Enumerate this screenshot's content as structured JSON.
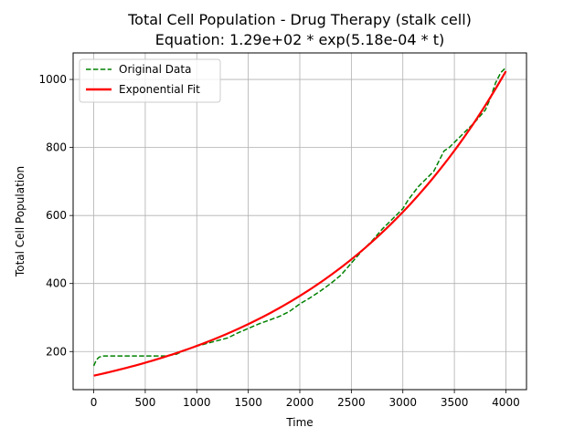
{
  "chart_data": {
    "type": "line",
    "title": "Total Cell Population - Drug Therapy (stalk cell)",
    "subtitle": "Equation: 1.29e+02 * exp(5.18e-04 * t)",
    "xlabel": "Time",
    "ylabel": "Total Cell Population",
    "xlim": [
      -200,
      4200
    ],
    "ylim": [
      88,
      1078
    ],
    "xticks": [
      0,
      500,
      1000,
      1500,
      2000,
      2500,
      3000,
      3500,
      4000
    ],
    "yticks": [
      200,
      400,
      600,
      800,
      1000
    ],
    "grid": true,
    "legend_position": "top-left",
    "series": [
      {
        "name": "Original Data",
        "color": "#008000",
        "style": "dashed",
        "x": [
          0,
          25,
          50,
          75,
          100,
          200,
          300,
          400,
          500,
          600,
          700,
          800,
          900,
          1000,
          1100,
          1200,
          1300,
          1400,
          1500,
          1600,
          1700,
          1800,
          1900,
          2000,
          2100,
          2200,
          2300,
          2400,
          2500,
          2600,
          2700,
          2800,
          2900,
          3000,
          3050,
          3100,
          3150,
          3200,
          3300,
          3400,
          3450,
          3500,
          3600,
          3700,
          3800,
          3850,
          3900,
          3950,
          4000
        ],
        "y": [
          158,
          175,
          183,
          186,
          187,
          187,
          187,
          187,
          187,
          187,
          187,
          192,
          206,
          216,
          224,
          232,
          240,
          255,
          268,
          281,
          292,
          303,
          318,
          340,
          358,
          378,
          400,
          425,
          460,
          495,
          525,
          560,
          590,
          620,
          645,
          665,
          685,
          700,
          730,
          790,
          800,
          815,
          845,
          875,
          910,
          945,
          990,
          1020,
          1035
        ]
      },
      {
        "name": "Exponential Fit",
        "color": "#ff0000",
        "style": "solid",
        "function": "1.29e+02 * exp(5.18e-04 * t)",
        "x_range": [
          0,
          4000
        ]
      }
    ]
  }
}
